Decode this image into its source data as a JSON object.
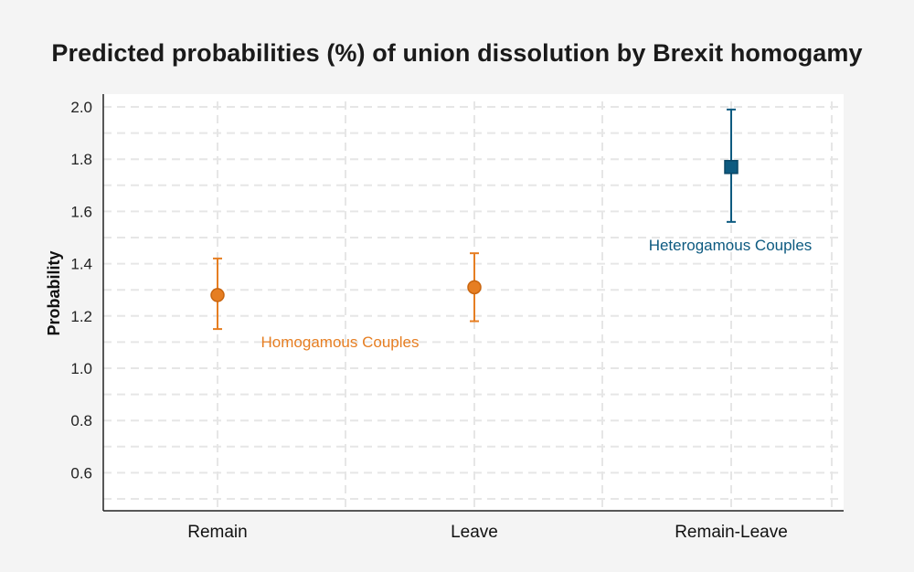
{
  "title": "Predicted probabilities (%) of union dissolution by Brexit homogamy",
  "chart_data": {
    "type": "scatter",
    "title": "Predicted probabilities (%) of union dissolution by Brexit homogamy",
    "xlabel": "",
    "ylabel": "Probability",
    "categories": [
      "Remain",
      "Leave",
      "Remain-Leave"
    ],
    "ylim": [
      0.5,
      2.05
    ],
    "yticks": [
      "0.6",
      "0.8",
      "1.0",
      "1.2",
      "1.4",
      "1.6",
      "1.8",
      "2.0"
    ],
    "grid": true,
    "colors": {
      "homogamous": "#e67e22",
      "homogamous_dark": "#c9650f",
      "heterogamous": "#0d5a80",
      "heterogamous_dark": "#0a4665",
      "axis": "#222222",
      "grid": "#e6e6e6",
      "plot_bg": "#ffffff"
    },
    "series": [
      {
        "group": "homogamous",
        "marker": "circle",
        "points": [
          {
            "category": "Remain",
            "y": 1.28,
            "low": 1.15,
            "high": 1.42
          },
          {
            "category": "Leave",
            "y": 1.31,
            "low": 1.18,
            "high": 1.44
          }
        ]
      },
      {
        "group": "heterogamous",
        "marker": "square",
        "points": [
          {
            "category": "Remain-Leave",
            "y": 1.77,
            "low": 1.56,
            "high": 1.99
          }
        ]
      }
    ],
    "annotations": [
      {
        "text": "Homogamous Couples",
        "group": "homogamous"
      },
      {
        "text": "Heterogamous Couples",
        "group": "heterogamous"
      }
    ]
  }
}
